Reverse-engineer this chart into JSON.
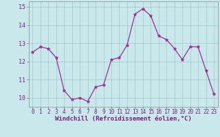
{
  "x": [
    0,
    1,
    2,
    3,
    4,
    5,
    6,
    7,
    8,
    9,
    10,
    11,
    12,
    13,
    14,
    15,
    16,
    17,
    18,
    19,
    20,
    21,
    22,
    23
  ],
  "y": [
    12.5,
    12.8,
    12.7,
    12.2,
    10.4,
    9.9,
    10.0,
    9.8,
    10.6,
    10.7,
    12.1,
    12.2,
    12.9,
    14.6,
    14.9,
    14.5,
    13.4,
    13.2,
    12.7,
    12.1,
    12.8,
    12.8,
    11.5,
    10.2
  ],
  "line_color": "#9B2D8E",
  "marker_color": "#9B2D8E",
  "bg_color": "#C8E8EC",
  "grid_color": "#A0C8CC",
  "xlabel": "Windchill (Refroidissement éolien,°C)",
  "ylabel_ticks": [
    10,
    11,
    12,
    13,
    14,
    15
  ],
  "xtick_labels": [
    "0",
    "1",
    "2",
    "3",
    "4",
    "5",
    "6",
    "7",
    "8",
    "9",
    "10",
    "11",
    "12",
    "13",
    "14",
    "15",
    "16",
    "17",
    "18",
    "19",
    "20",
    "21",
    "22",
    "23"
  ],
  "ylim": [
    9.5,
    15.3
  ],
  "xlim": [
    -0.5,
    23.5
  ],
  "axis_fontsize": 6.5,
  "tick_fontsize": 6.0
}
